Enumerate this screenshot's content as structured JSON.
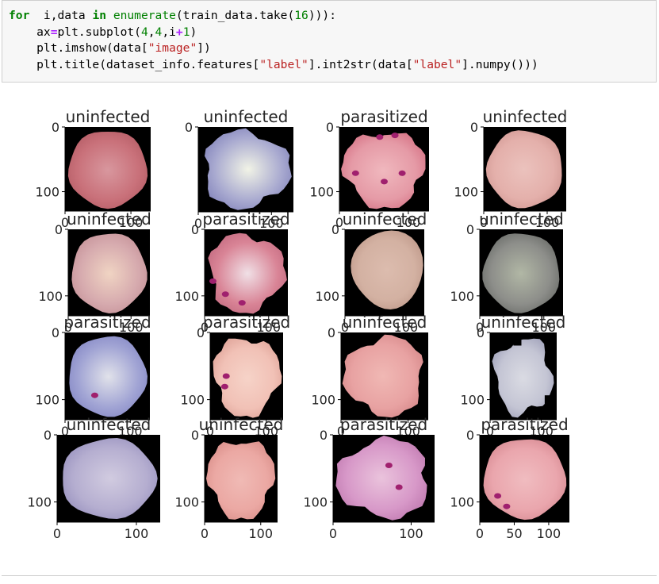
{
  "cell": {
    "code_lines": [
      [
        [
          "kw",
          "for"
        ],
        [
          "",
          "  i,data "
        ],
        [
          "kw",
          "in"
        ],
        [
          "",
          " "
        ],
        [
          "bi",
          "enumerate"
        ],
        [
          "",
          "(train_data.take("
        ],
        [
          "num",
          "16"
        ],
        [
          "",
          "))):"
        ]
      ],
      [
        [
          "",
          "    ax"
        ],
        [
          "op",
          "="
        ],
        [
          "",
          "plt.subplot("
        ],
        [
          "num",
          "4"
        ],
        [
          "",
          ","
        ],
        [
          "num",
          "4"
        ],
        [
          "",
          ",i"
        ],
        [
          "op",
          "+"
        ],
        [
          "num",
          "1"
        ],
        [
          "",
          ")"
        ]
      ],
      [
        [
          "",
          "    plt.imshow(data["
        ],
        [
          "str",
          "\"image\""
        ],
        [
          "",
          "])"
        ]
      ],
      [
        [
          "",
          "    plt.title(dataset_info.features["
        ],
        [
          "str",
          "\"label\""
        ],
        [
          "",
          "].int2str(data["
        ],
        [
          "str",
          "\"label\""
        ],
        [
          "",
          "].numpy()))"
        ]
      ]
    ]
  },
  "subplots": [
    {
      "title": "uninfected",
      "cell": {
        "shape": "round",
        "color": "#c9717a",
        "edge": "#b86069",
        "highlight": "#d8979e"
      },
      "xticks": [
        "0",
        "100"
      ],
      "yticks": [
        "0",
        "100"
      ]
    },
    {
      "title": "uninfected",
      "cell": {
        "shape": "blob",
        "color": "#a9aad0",
        "edge": "#8b8cc0",
        "highlight": "#f1f3e6"
      },
      "xticks": [
        "0",
        "100"
      ],
      "yticks": [
        "0"
      ]
    },
    {
      "title": "parasitized",
      "cell": {
        "shape": "blob",
        "color": "#e59aa6",
        "edge": "#d97b8c",
        "highlight": "#f0b8be",
        "spots": [
          [
            0.45,
            0.12
          ],
          [
            0.62,
            0.1
          ],
          [
            0.18,
            0.55
          ],
          [
            0.5,
            0.65
          ],
          [
            0.7,
            0.55
          ]
        ]
      },
      "xticks": [
        "0",
        "100"
      ],
      "yticks": [
        "0",
        "100"
      ]
    },
    {
      "title": "uninfected",
      "cell": {
        "shape": "round",
        "color": "#e4b0ab",
        "edge": "#d49c97",
        "highlight": "#ebc2bd"
      },
      "xticks": [
        "0",
        "100"
      ],
      "yticks": [
        "0",
        "100"
      ]
    },
    {
      "title": "uninfected",
      "cell": {
        "shape": "round",
        "color": "#d6aaae",
        "edge": "#c8969c",
        "highlight": "#f0d4c3"
      },
      "xticks": [
        "0",
        "100"
      ],
      "yticks": [
        "0",
        "100"
      ]
    },
    {
      "title": "parasitized",
      "cell": {
        "shape": "blob",
        "color": "#d98496",
        "edge": "#c76f84",
        "highlight": "#f0e0e6",
        "spots": [
          [
            0.25,
            0.75
          ],
          [
            0.45,
            0.85
          ],
          [
            0.1,
            0.6
          ]
        ]
      },
      "xticks": [
        "0",
        "100"
      ],
      "yticks": [
        "0",
        "100"
      ]
    },
    {
      "title": "uninfected",
      "cell": {
        "shape": "drop",
        "color": "#d3b1a2",
        "edge": "#c29d8e",
        "highlight": "#dcbcae"
      },
      "xticks": [
        "0",
        "100"
      ],
      "yticks": [
        "0",
        "100"
      ]
    },
    {
      "title": "uninfected",
      "cell": {
        "shape": "round",
        "color": "#8d8e8a",
        "edge": "#6f716d",
        "highlight": "#b1b7a5"
      },
      "xticks": [
        "0",
        "100"
      ],
      "yticks": [
        "0",
        "100"
      ]
    },
    {
      "title": "parasitized",
      "cell": {
        "shape": "round",
        "color": "#a1a4d4",
        "edge": "#8a8dc8",
        "highlight": "#e1e2ea",
        "spots": [
          [
            0.35,
            0.72
          ]
        ]
      },
      "xticks": [
        "0",
        "100"
      ],
      "yticks": [
        "0",
        "100"
      ]
    },
    {
      "title": "parasitized",
      "cell": {
        "shape": "blob",
        "color": "#f1c1b6",
        "edge": "#e3aa9f",
        "highlight": "#f6d3c8",
        "spots": [
          [
            0.22,
            0.5
          ],
          [
            0.2,
            0.62
          ]
        ]
      },
      "xticks": [
        "0",
        "100"
      ],
      "yticks": [
        "0",
        "100"
      ]
    },
    {
      "title": "uninfected",
      "cell": {
        "shape": "blob",
        "color": "#e8a2a2",
        "edge": "#d98d8e",
        "highlight": "#f0b8b4"
      },
      "xticks": [
        "0",
        "100"
      ],
      "yticks": [
        "0",
        "100"
      ]
    },
    {
      "title": "uninfected",
      "cell": {
        "shape": "holey",
        "color": "#c4c5d4",
        "edge": "#a9aac0",
        "highlight": "#dadbe3"
      },
      "xticks": [
        "0",
        "100"
      ],
      "yticks": [
        "0",
        "100"
      ]
    },
    {
      "title": "uninfected",
      "cell": {
        "shape": "round",
        "color": "#b5aed0",
        "edge": "#9e97c2",
        "highlight": "#d1cbe0"
      },
      "xticks": [
        "0",
        "100"
      ],
      "yticks": [
        "0",
        "100"
      ]
    },
    {
      "title": "uninfected",
      "cell": {
        "shape": "blob",
        "color": "#eba8a3",
        "edge": "#dd948f",
        "highlight": "#f0bab5"
      },
      "xticks": [
        "0",
        "100"
      ],
      "yticks": [
        "0",
        "100"
      ]
    },
    {
      "title": "parasitized",
      "cell": {
        "shape": "blob",
        "color": "#d798c8",
        "edge": "#c47fb4",
        "highlight": "#eac3dc",
        "spots": [
          [
            0.55,
            0.35
          ],
          [
            0.65,
            0.6
          ]
        ]
      },
      "xticks": [
        "0",
        "100"
      ],
      "yticks": [
        "0",
        "100"
      ]
    },
    {
      "title": "parasitized",
      "cell": {
        "shape": "round",
        "color": "#eaa6ad",
        "edge": "#da8f97",
        "highlight": "#f0bcc0",
        "spots": [
          [
            0.2,
            0.7
          ],
          [
            0.3,
            0.82
          ]
        ]
      },
      "xticks": [
        "0",
        "50",
        "100"
      ],
      "yticks": [
        "0",
        "100"
      ]
    }
  ]
}
